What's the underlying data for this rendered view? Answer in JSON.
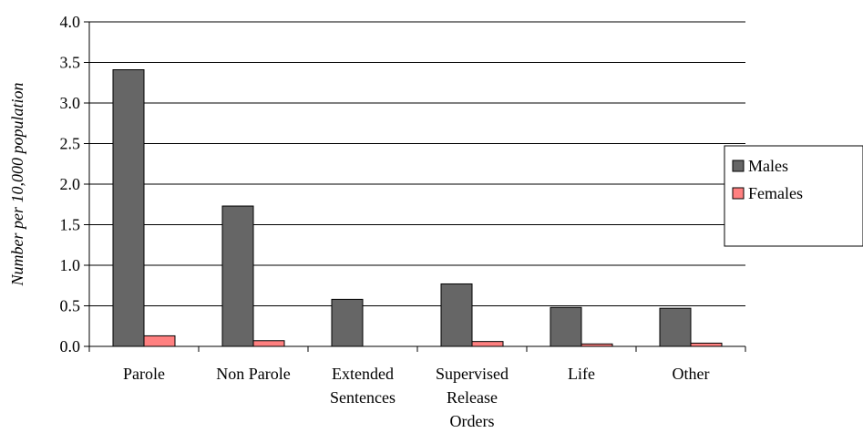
{
  "chart_data": {
    "type": "bar",
    "title": "",
    "xlabel": "",
    "ylabel": "Number per 10,000 population",
    "ylim": [
      0,
      4.0
    ],
    "yticks": [
      "0.0",
      "0.5",
      "1.0",
      "1.5",
      "2.0",
      "2.5",
      "3.0",
      "3.5",
      "4.0"
    ],
    "categories": [
      [
        "Parole"
      ],
      [
        "Non Parole"
      ],
      [
        "Extended",
        "Sentences"
      ],
      [
        "Supervised",
        "Release",
        "Orders"
      ],
      [
        "Life"
      ],
      [
        "Other"
      ]
    ],
    "series": [
      {
        "name": "Males",
        "color": "#666666",
        "values": [
          3.41,
          1.73,
          0.58,
          0.77,
          0.48,
          0.47
        ]
      },
      {
        "name": "Females",
        "color": "#ff8080",
        "values": [
          0.13,
          0.07,
          0.0,
          0.06,
          0.03,
          0.04
        ]
      }
    ],
    "grid": true,
    "legend": "right"
  }
}
